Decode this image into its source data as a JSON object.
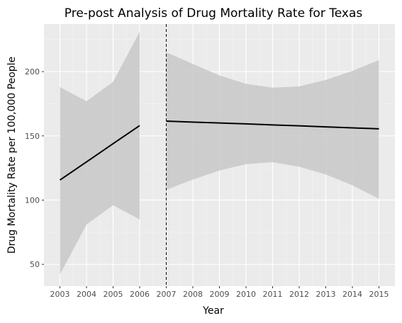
{
  "chart_data": {
    "type": "line",
    "title": "Pre-post Analysis of Drug Mortality Rate for Texas",
    "xlabel": "Year",
    "ylabel": "Drug Mortality Rate per 100,000 People",
    "xlim": [
      2002.4,
      2015.6
    ],
    "ylim": [
      33,
      237
    ],
    "x_ticks": [
      2003,
      2004,
      2005,
      2006,
      2007,
      2008,
      2009,
      2010,
      2011,
      2012,
      2013,
      2014,
      2015
    ],
    "y_ticks": [
      50,
      100,
      150,
      200
    ],
    "grid": true,
    "legend": "none",
    "intervention_year": 2007,
    "colors": {
      "panel": "#ebebeb",
      "grid_major": "#ffffff",
      "grid_minor": "#f5f5f5",
      "band": "#c8c8c8",
      "line": "#000000"
    },
    "series": [
      {
        "x": [
          2003,
          2004,
          2005,
          2006
        ],
        "fit": [
          115.6,
          129.7,
          143.9,
          158
        ],
        "lower": [
          42,
          81,
          96,
          85
        ],
        "upper": [
          188,
          177,
          192,
          231
        ]
      },
      {
        "x": [
          2007,
          2008,
          2009,
          2010,
          2011,
          2012,
          2013,
          2014,
          2015
        ],
        "fit": [
          161.5,
          160.7,
          160.0,
          159.3,
          158.5,
          157.8,
          157.0,
          156.2,
          155.5
        ],
        "lower": [
          108,
          116,
          123,
          128,
          129.5,
          126,
          120,
          111.5,
          101
        ],
        "upper": [
          215,
          206,
          197,
          190.5,
          187.5,
          188.5,
          193.5,
          200.5,
          209
        ]
      }
    ]
  }
}
